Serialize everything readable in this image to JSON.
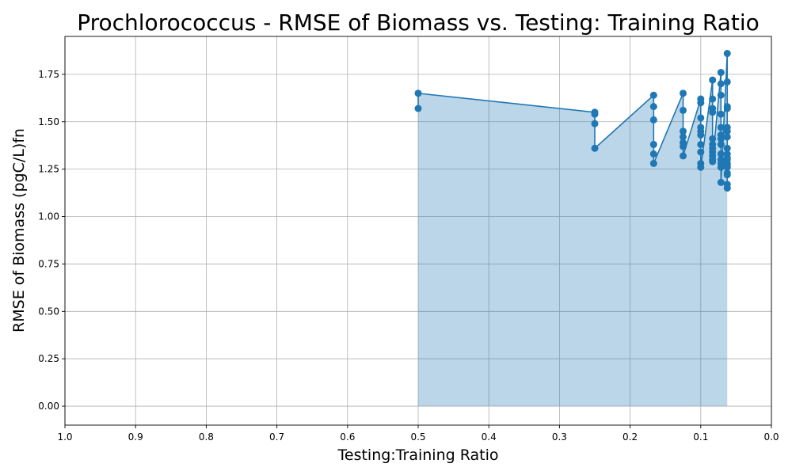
{
  "chart_data": {
    "type": "line",
    "title": "Prochlorococcus - RMSE of Biomass vs. Testing: Training Ratio",
    "xlabel": "Testing:Training Ratio",
    "ylabel": "RMSE of Biomass (pgC/L)fn",
    "xlim": [
      1.0,
      0.0
    ],
    "ylim": [
      -0.1,
      1.95
    ],
    "x_ticks": [
      1.0,
      0.9,
      0.8,
      0.7,
      0.6,
      0.5,
      0.4,
      0.3,
      0.2,
      0.1,
      0.0
    ],
    "x_tick_labels": [
      "1.0",
      "0.9",
      "0.8",
      "0.7",
      "0.6",
      "0.5",
      "0.4",
      "0.3",
      "0.2",
      "0.1",
      "0.0"
    ],
    "y_ticks": [
      0.0,
      0.25,
      0.5,
      0.75,
      1.0,
      1.25,
      1.5,
      1.75
    ],
    "y_tick_labels": [
      "0.00",
      "0.25",
      "0.50",
      "0.75",
      "1.00",
      "1.25",
      "1.50",
      "1.75"
    ],
    "grid": true,
    "line_color": "#1f77b4",
    "fill_color": "#1f77b4",
    "fill_opacity": 0.3,
    "series": [
      {
        "x": [
          0.5,
          0.5,
          0.25,
          0.25,
          0.25,
          0.25,
          0.1667,
          0.1667,
          0.1667,
          0.1667,
          0.1667,
          0.1667,
          0.125,
          0.125,
          0.125,
          0.125,
          0.125,
          0.125,
          0.125,
          0.1,
          0.1,
          0.1,
          0.1,
          0.1,
          0.1,
          0.1,
          0.1,
          0.1,
          0.1,
          0.0833,
          0.0833,
          0.0833,
          0.0833,
          0.0833,
          0.0833,
          0.0833,
          0.0833,
          0.0833,
          0.0833,
          0.0833,
          0.0714,
          0.0714,
          0.0714,
          0.0714,
          0.0714,
          0.0714,
          0.0714,
          0.0714,
          0.0714,
          0.0714,
          0.0714,
          0.0714,
          0.0714,
          0.0625,
          0.0625,
          0.0625,
          0.0625,
          0.0625,
          0.0625,
          0.0625,
          0.0625,
          0.0625,
          0.0625,
          0.0625,
          0.0625,
          0.0625,
          0.0625,
          0.0625,
          0.0625,
          0.0625,
          0.0625
        ],
        "y": [
          1.57,
          1.65,
          1.55,
          1.54,
          1.49,
          1.36,
          1.64,
          1.58,
          1.51,
          1.38,
          1.33,
          1.28,
          1.65,
          1.56,
          1.45,
          1.42,
          1.39,
          1.37,
          1.32,
          1.62,
          1.6,
          1.52,
          1.47,
          1.45,
          1.43,
          1.38,
          1.34,
          1.28,
          1.26,
          1.72,
          1.62,
          1.57,
          1.55,
          1.41,
          1.38,
          1.36,
          1.34,
          1.32,
          1.3,
          1.29,
          1.76,
          1.7,
          1.64,
          1.54,
          1.47,
          1.43,
          1.41,
          1.38,
          1.33,
          1.3,
          1.28,
          1.26,
          1.18,
          1.86,
          1.71,
          1.58,
          1.57,
          1.47,
          1.45,
          1.42,
          1.36,
          1.33,
          1.31,
          1.3,
          1.28,
          1.27,
          1.26,
          1.23,
          1.22,
          1.15,
          1.17
        ]
      }
    ]
  }
}
